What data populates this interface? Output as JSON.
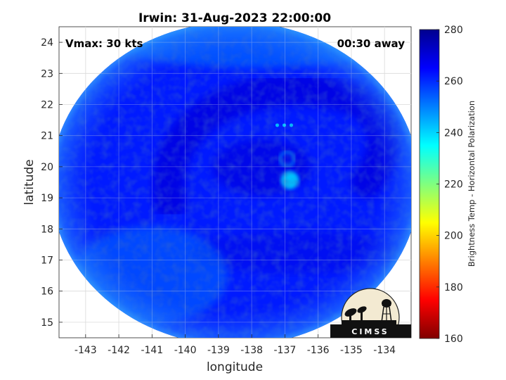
{
  "chart_data": {
    "type": "heatmap",
    "title": "Irwin: 31-Aug-2023 22:00:00",
    "xlabel": "longitude",
    "ylabel": "latitude",
    "xlim": [
      -143.8,
      -133.2
    ],
    "ylim": [
      14.5,
      24.5
    ],
    "xticks": [
      -143,
      -142,
      -141,
      -140,
      -139,
      -138,
      -137,
      -136,
      -135,
      -134
    ],
    "yticks": [
      15,
      16,
      17,
      18,
      19,
      20,
      21,
      22,
      23,
      24
    ],
    "grid": true,
    "swath_center": [
      -138.5,
      19.45
    ],
    "swath_radius_deg": [
      5.55,
      5.2
    ],
    "storm_center": [
      -136.85,
      19.75
    ],
    "annotations": {
      "vmax": "Vmax: 30 kts",
      "time_offset": "00:30 away"
    },
    "colorbar": {
      "label": "Brightness Temp - Horizontal Polarization",
      "range": [
        160,
        280
      ],
      "ticks": [
        160,
        180,
        200,
        220,
        240,
        260,
        280
      ],
      "colormap": [
        "#800000",
        "#ff0000",
        "#ffff00",
        "#00ffff",
        "#0000ff",
        "#00008f"
      ]
    },
    "field": {
      "background_value": 262,
      "features": [
        {
          "kind": "curved-band",
          "value": 269,
          "description_ref": "cold cloud arc"
        },
        {
          "kind": "warm-spot",
          "value": 240
        },
        {
          "kind": "warm-edge",
          "value": 250
        }
      ]
    }
  },
  "logo": {
    "text": "CIMSS"
  }
}
